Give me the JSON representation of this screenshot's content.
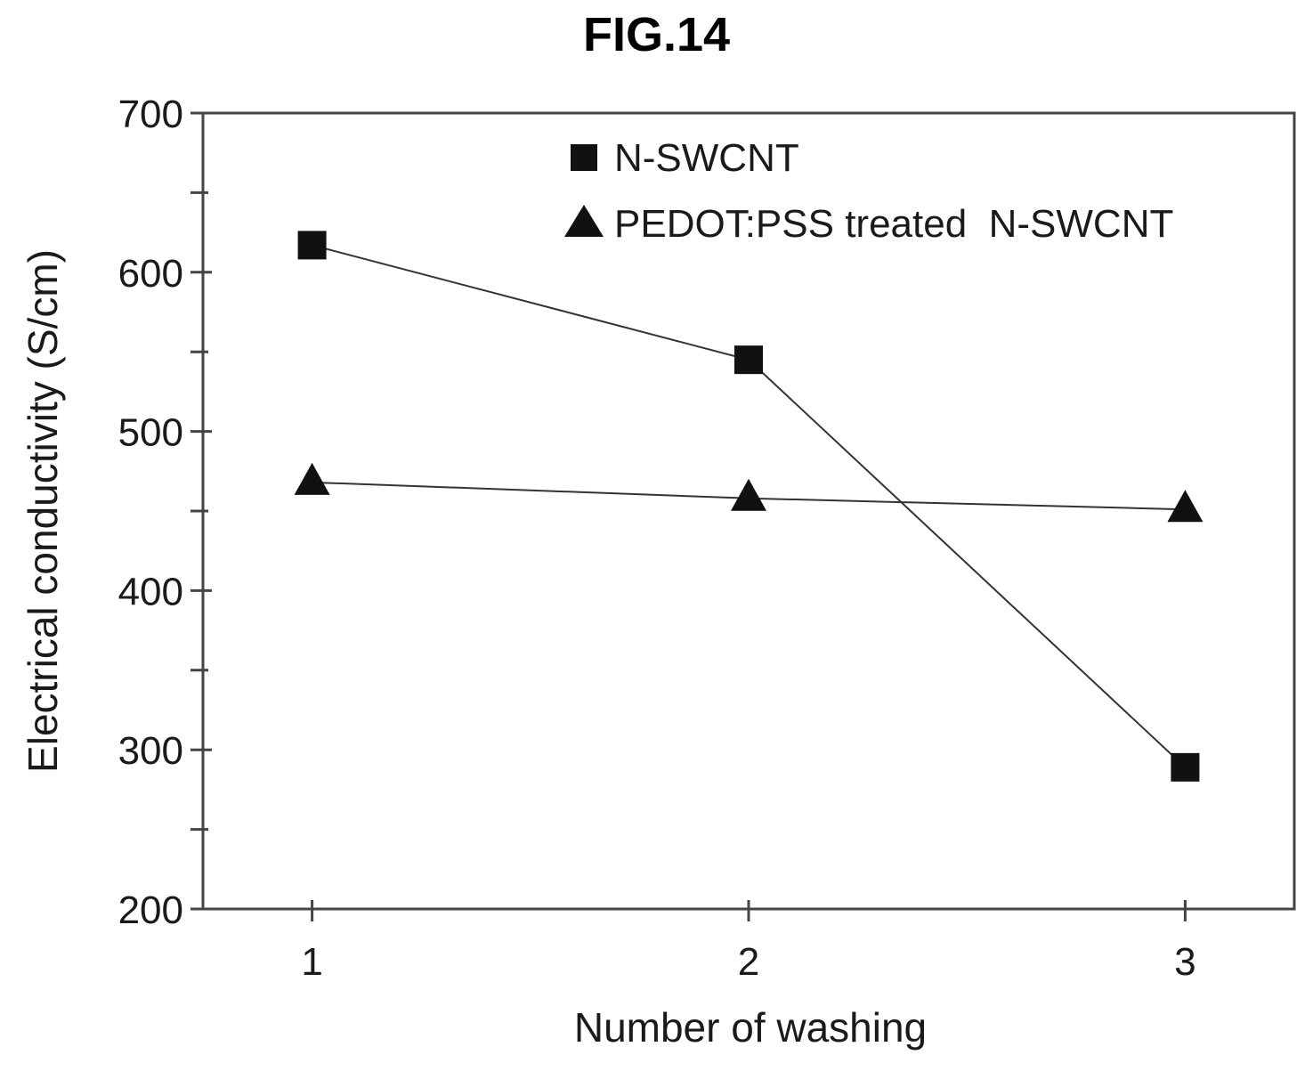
{
  "figure_label": "FIG.14",
  "colors": {
    "ink": "#111111",
    "line": "#333333",
    "frame": "#444444",
    "background": "#ffffff"
  },
  "chart_data": {
    "type": "line",
    "title": "FIG.14",
    "xlabel": "Number of washing",
    "ylabel": "Electrical conductivity (S/cm)",
    "x": [
      1,
      2,
      3
    ],
    "xlim": [
      0.75,
      3.25
    ],
    "ylim": [
      200,
      700
    ],
    "xticks": [
      1,
      2,
      3
    ],
    "yticks": [
      200,
      300,
      400,
      500,
      600,
      700
    ],
    "grid": false,
    "legend_position": "top-right",
    "series": [
      {
        "name": "N-SWCNT",
        "marker": "square",
        "values": [
          617,
          545,
          289
        ]
      },
      {
        "name": "PEDOT:PSS treated  N-SWCNT",
        "marker": "triangle",
        "values": [
          468,
          458,
          451
        ]
      }
    ]
  }
}
